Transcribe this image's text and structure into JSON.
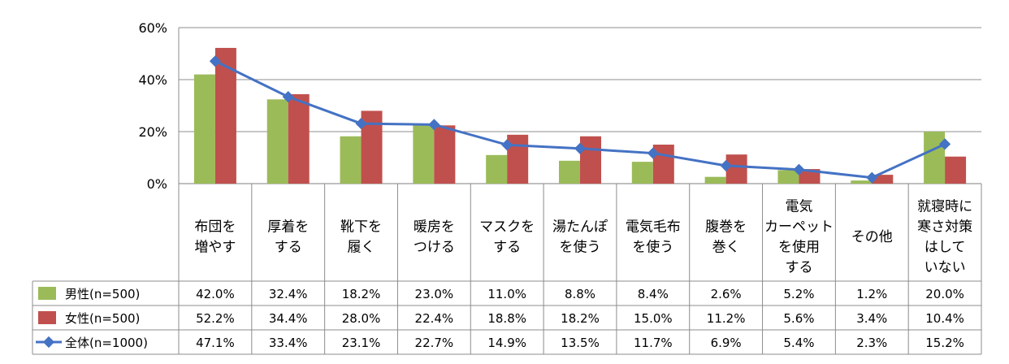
{
  "chart_data": {
    "type": "bar",
    "categories": [
      [
        "布団を",
        "増やす"
      ],
      [
        "厚着を",
        "する"
      ],
      [
        "靴下を",
        "履く"
      ],
      [
        "暖房を",
        "つける"
      ],
      [
        "マスクを",
        "する"
      ],
      [
        "湯たんぽ",
        "を使う"
      ],
      [
        "電気毛布",
        "を使う"
      ],
      [
        "腹巻を",
        "巻く"
      ],
      [
        "電気",
        "カーペット",
        "を使用",
        "する"
      ],
      [
        "その他"
      ],
      [
        "就寝時に",
        "寒さ対策",
        "はして",
        "いない"
      ]
    ],
    "series": [
      {
        "name": "男性(n=500)",
        "kind": "bar",
        "color": "#9BBB59",
        "values": [
          42.0,
          32.4,
          18.2,
          23.0,
          11.0,
          8.8,
          8.4,
          2.6,
          5.2,
          1.2,
          20.0
        ],
        "labels": [
          "42.0%",
          "32.4%",
          "18.2%",
          "23.0%",
          "11.0%",
          "8.8%",
          "8.4%",
          "2.6%",
          "5.2%",
          "1.2%",
          "20.0%"
        ]
      },
      {
        "name": "女性(n=500)",
        "kind": "bar",
        "color": "#C0504D",
        "values": [
          52.2,
          34.4,
          28.0,
          22.4,
          18.8,
          18.2,
          15.0,
          11.2,
          5.6,
          3.4,
          10.4
        ],
        "labels": [
          "52.2%",
          "34.4%",
          "28.0%",
          "22.4%",
          "18.8%",
          "18.2%",
          "15.0%",
          "11.2%",
          "5.6%",
          "3.4%",
          "10.4%"
        ]
      },
      {
        "name": "全体(n=1000)",
        "kind": "line",
        "color": "#4472C4",
        "values": [
          47.1,
          33.4,
          23.1,
          22.7,
          14.9,
          13.5,
          11.7,
          6.9,
          5.4,
          2.3,
          15.2
        ],
        "labels": [
          "47.1%",
          "33.4%",
          "23.1%",
          "22.7%",
          "14.9%",
          "13.5%",
          "11.7%",
          "6.9%",
          "5.4%",
          "2.3%",
          "15.2%"
        ]
      }
    ],
    "ylim": [
      0,
      60
    ],
    "yticks": [
      0,
      20,
      40,
      60
    ],
    "ytick_labels": [
      "0%",
      "20%",
      "40%",
      "60%"
    ],
    "grid": true,
    "legend": "data-table-left"
  }
}
